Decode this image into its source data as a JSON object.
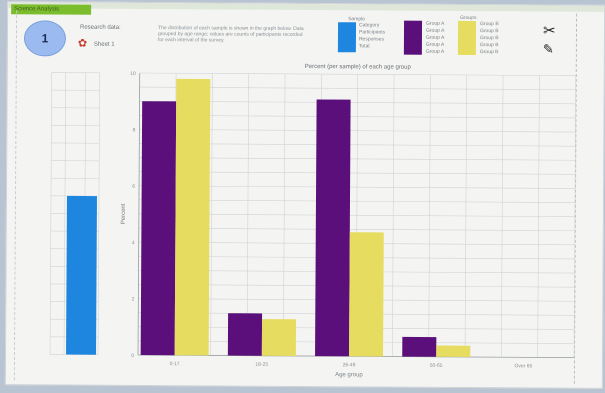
{
  "header": {
    "tag_label": "Science Analysis",
    "circle_number": "1",
    "top_label": "Research data:",
    "sub_label": "Sheet 1",
    "note": "The distribution of each sample is shown in the graph below. Data grouped by age range; values are counts of participants recorded for each interval of the survey."
  },
  "legend_left": {
    "title": "Sample",
    "items": [
      "Category",
      "Participants",
      "Responses",
      "Total"
    ]
  },
  "legend_right": {
    "title": "Groups",
    "purple_items": [
      "Group A",
      "Group A",
      "Group A",
      "Group A",
      "Group A"
    ],
    "yellow_items": [
      "Group B",
      "Group B",
      "Group B",
      "Group B",
      "Group B"
    ]
  },
  "colors": {
    "purple": "#5b0f7a",
    "yellow": "#e6dc5f",
    "blue": "#1f86e0",
    "grid": "#cfd3d4"
  },
  "icons": [
    "scissors-icon",
    "pencil-icon",
    "flower-icon"
  ],
  "chart_data": [
    {
      "type": "bar",
      "title": "",
      "categories": [
        ""
      ],
      "series": [
        {
          "values": [
            9
          ]
        }
      ],
      "ylim": [
        0,
        16
      ],
      "ylabel": "",
      "xlabel": ""
    },
    {
      "type": "bar",
      "title": "Percent (per sample) of each age group",
      "categories": [
        "0-17",
        "18-25",
        "26-49",
        "50-65",
        "Over 65"
      ],
      "series": [
        {
          "values": [
            9.0,
            1.5,
            9.1,
            0.7,
            0
          ]
        },
        {
          "values": [
            9.8,
            1.3,
            4.4,
            0.4,
            0
          ]
        }
      ],
      "ylim": [
        0,
        10
      ],
      "ylabel": "Percent",
      "xlabel": "Age group"
    }
  ]
}
